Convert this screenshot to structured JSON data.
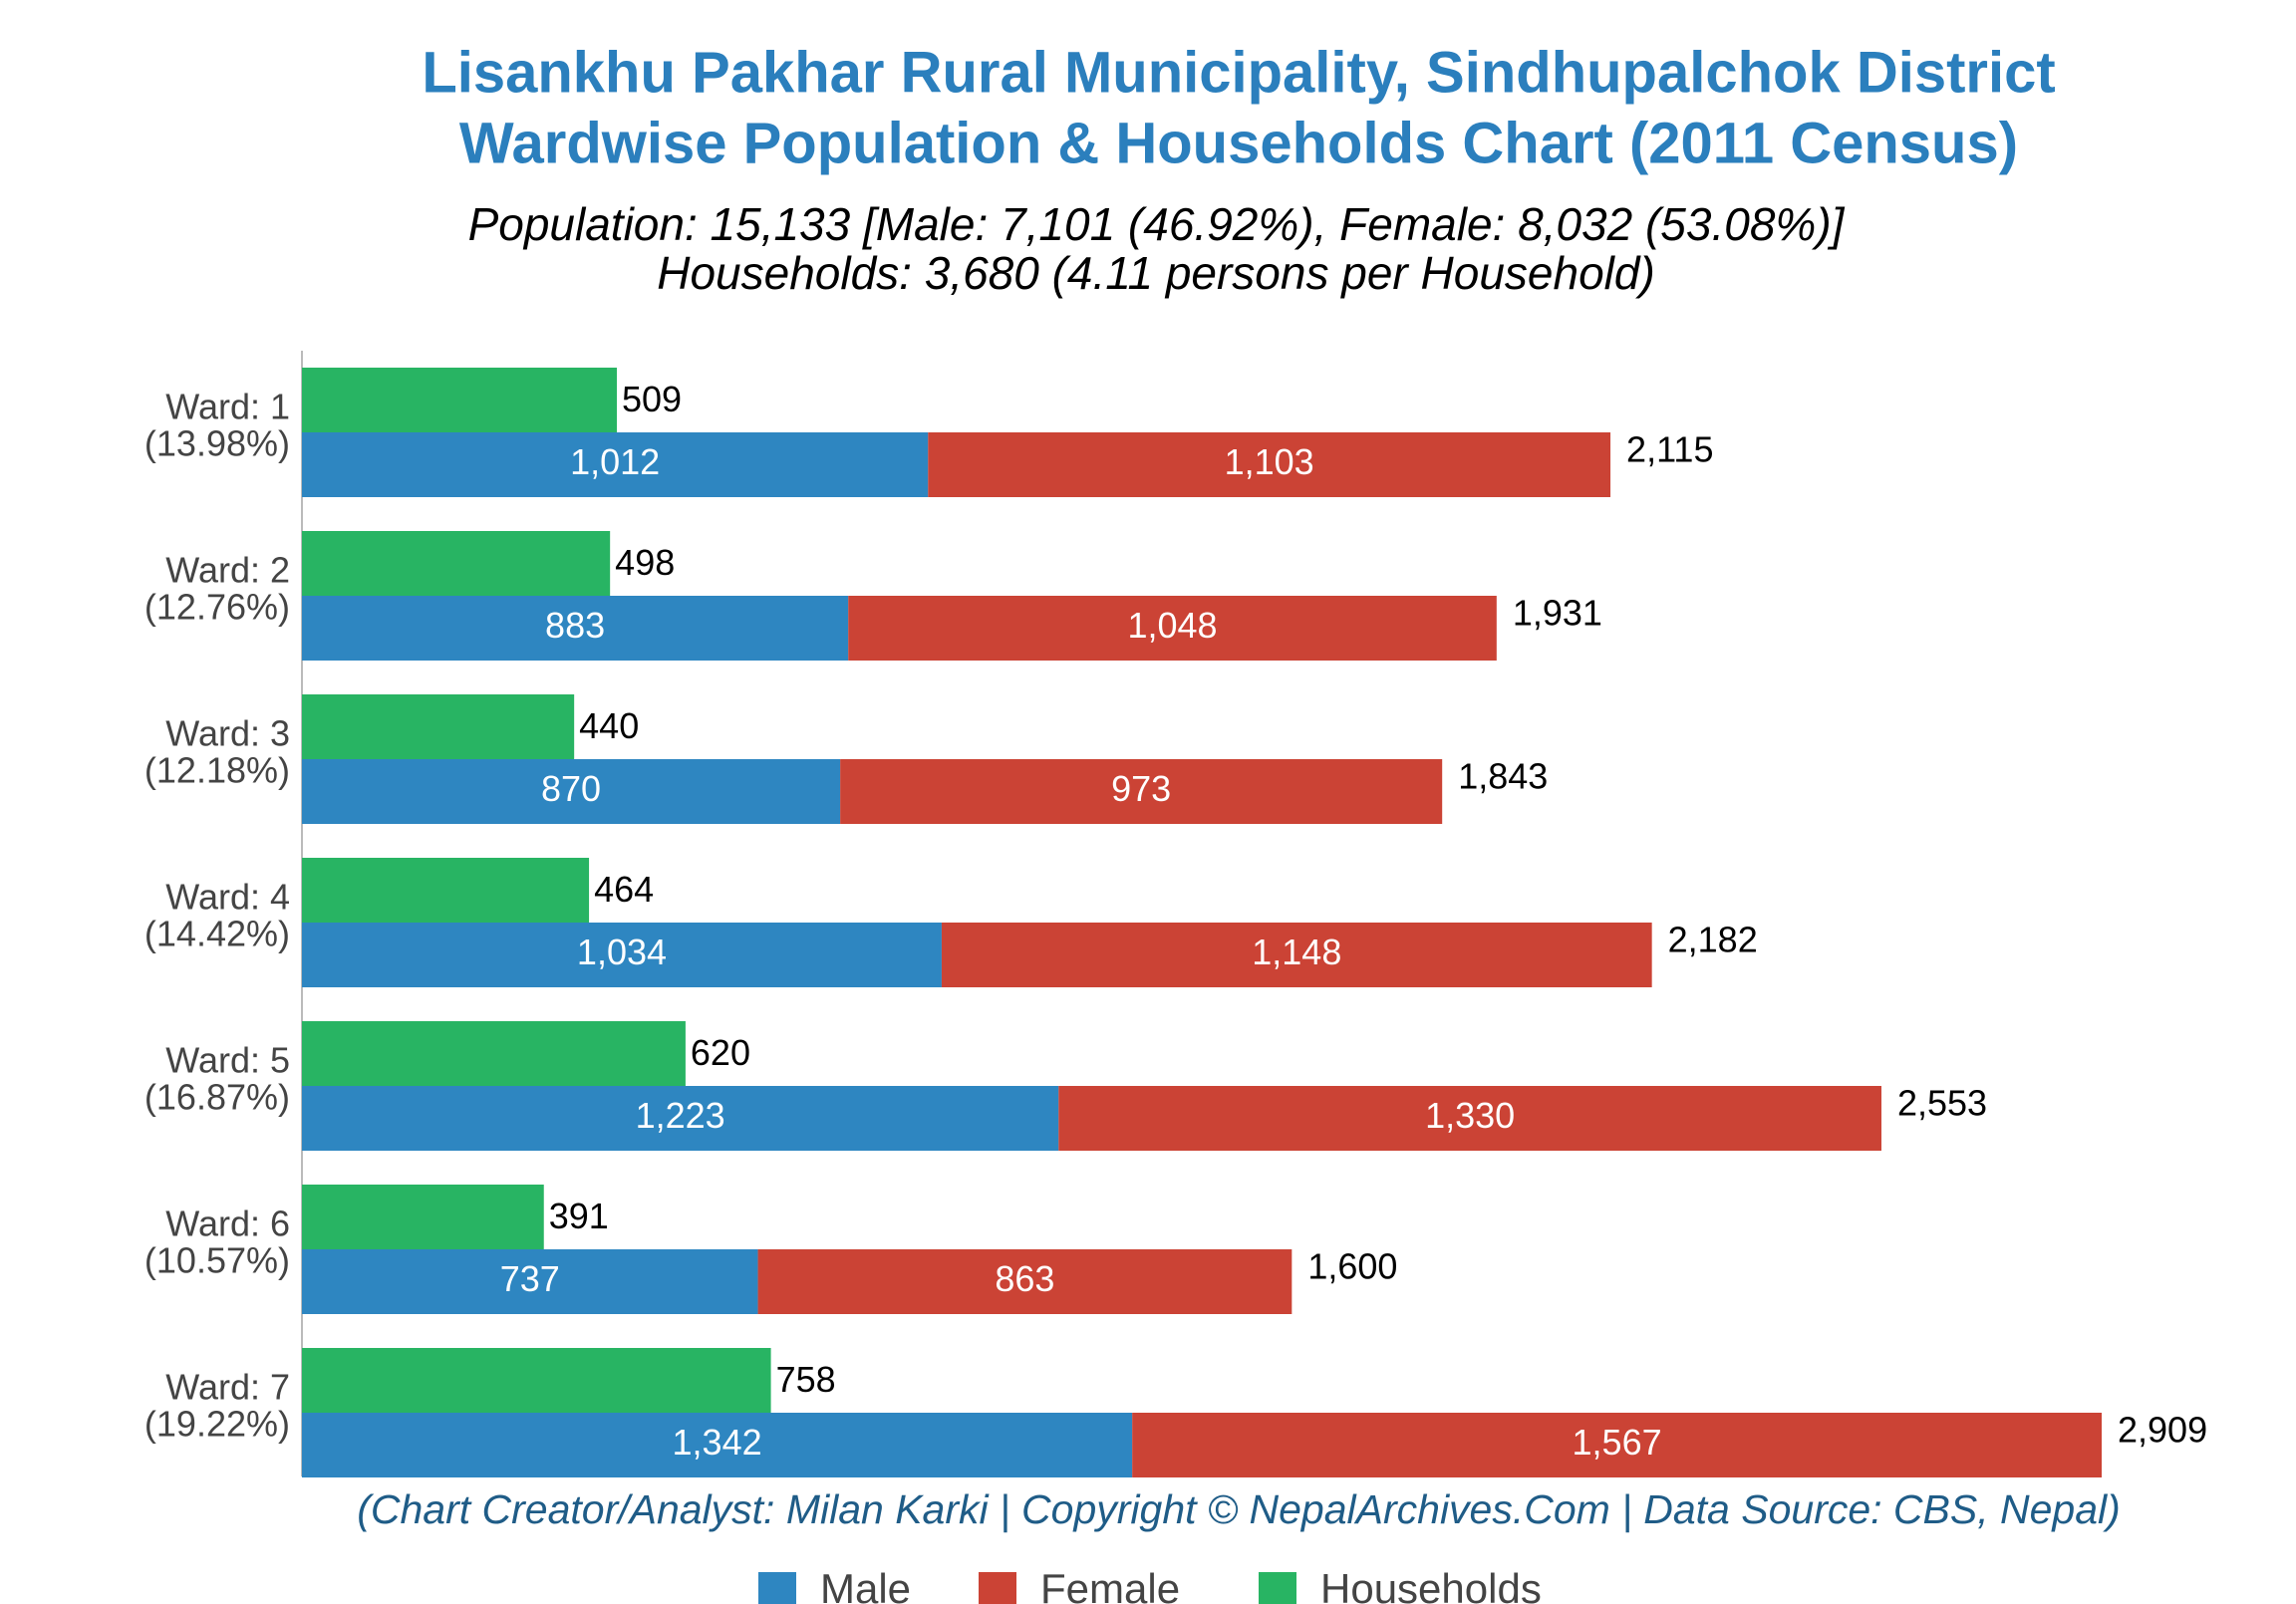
{
  "chart_data": {
    "type": "bar",
    "orientation": "horizontal",
    "title": [
      "Lisankhu Pakhar Rural Municipality, Sindhupalchok District",
      "Wardwise Population & Households Chart (2011 Census)"
    ],
    "subtitle": [
      "Population: 15,133 [Male: 7,101 (46.92%), Female: 8,032 (53.08%)]",
      "Households: 3,680 (4.11 persons per Household)"
    ],
    "credit": "(Chart Creator/Analyst: Milan Karki | Copyright © NepalArchives.Com | Data Source: CBS, Nepal)",
    "categories": [
      [
        "Ward: 1",
        "(13.98%)"
      ],
      [
        "Ward: 2",
        "(12.76%)"
      ],
      [
        "Ward: 3",
        "(12.18%)"
      ],
      [
        "Ward: 4",
        "(14.42%)"
      ],
      [
        "Ward: 5",
        "(16.87%)"
      ],
      [
        "Ward: 6",
        "(10.57%)"
      ],
      [
        "Ward: 7",
        "(19.22%)"
      ]
    ],
    "series": [
      {
        "name": "Male",
        "color": "#2e86c1",
        "stacked": true,
        "values": [
          1012,
          883,
          870,
          1034,
          1223,
          737,
          1342
        ],
        "value_labels": [
          "1,012",
          "883",
          "870",
          "1,034",
          "1,223",
          "737",
          "1,342"
        ]
      },
      {
        "name": "Female",
        "color": "#cb4335",
        "stacked": true,
        "values": [
          1103,
          1048,
          973,
          1148,
          1330,
          863,
          1567
        ],
        "value_labels": [
          "1,103",
          "1,048",
          "973",
          "1,148",
          "1,330",
          "863",
          "1,567"
        ]
      },
      {
        "name": "Households",
        "color": "#28b463",
        "stacked": false,
        "values": [
          509,
          498,
          440,
          464,
          620,
          391,
          758
        ]
      }
    ],
    "totals": [
      {
        "value": 2115,
        "label": "2,115"
      },
      {
        "value": 1931,
        "label": "1,931"
      },
      {
        "value": 1843,
        "label": "1,843"
      },
      {
        "value": 2182,
        "label": "2,182"
      },
      {
        "value": 2553,
        "label": "2,553"
      },
      {
        "value": 1600,
        "label": "1,600"
      },
      {
        "value": 2909,
        "label": "2,909"
      }
    ],
    "legend": "bottom"
  }
}
